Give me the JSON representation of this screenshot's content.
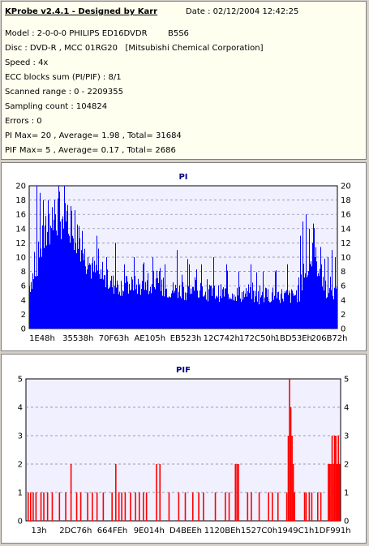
{
  "header": {
    "title": "KProbe v2.4.1 - Designed by Karr",
    "date": "Date : 02/12/2004 12:42:25",
    "lines": [
      "Model : 2-0-0-0 PHILIPS ED16DVDR        B5S6",
      "Disc : DVD-R , MCC 01RG20   [Mitsubishi Chemical Corporation]",
      "Speed : 4x",
      "ECC blocks sum (PI/PIF) : 8/1",
      "Scanned range : 0 - 2209355",
      "Sampling count : 104824",
      "Errors : 0",
      "PI Max= 20 , Average= 1.98 , Total= 31684",
      "PIF Max= 5 , Average= 0.17 , Total= 2686"
    ]
  },
  "colors": {
    "pi": "#0000ff",
    "pif": "#ff0000",
    "plot_bg": "#f0f0ff",
    "title": "#000080"
  },
  "chart_data": [
    {
      "type": "bar",
      "title": "PI",
      "ylim": [
        0,
        20
      ],
      "yticks": [
        0,
        2,
        4,
        6,
        8,
        10,
        12,
        14,
        16,
        18,
        20
      ],
      "xtick_labels": [
        "1E48h",
        "35538h",
        "70F63h",
        "AE105h",
        "EB523h",
        "12C742h",
        "172C50h",
        "1BD53Eh",
        "206B72h"
      ],
      "grid": true,
      "profile": [
        [
          0,
          6
        ],
        [
          3,
          10
        ],
        [
          6,
          14
        ],
        [
          9,
          16
        ],
        [
          12,
          17
        ],
        [
          15,
          14
        ],
        [
          18,
          10
        ],
        [
          21,
          8
        ],
        [
          24,
          7
        ],
        [
          28,
          6
        ],
        [
          35,
          6
        ],
        [
          45,
          5.5
        ],
        [
          55,
          5
        ],
        [
          65,
          5
        ],
        [
          75,
          4.5
        ],
        [
          80,
          4.8
        ],
        [
          85,
          4.5
        ],
        [
          88,
          5
        ],
        [
          90,
          8
        ],
        [
          92,
          10
        ],
        [
          94,
          9
        ],
        [
          96,
          6
        ],
        [
          98,
          4.5
        ],
        [
          100,
          5
        ]
      ],
      "spikes": [
        [
          2.5,
          20
        ],
        [
          3.5,
          19
        ],
        [
          4.5,
          18
        ],
        [
          6,
          18
        ],
        [
          7.5,
          17
        ],
        [
          8.5,
          16
        ],
        [
          10,
          15
        ],
        [
          11,
          14
        ],
        [
          12,
          15
        ],
        [
          13,
          13
        ],
        [
          15,
          12
        ],
        [
          17,
          11
        ],
        [
          19,
          10
        ],
        [
          22,
          13
        ],
        [
          25,
          10
        ],
        [
          28,
          12
        ],
        [
          31,
          9
        ],
        [
          34,
          10
        ],
        [
          37,
          9
        ],
        [
          40,
          10
        ],
        [
          44,
          9
        ],
        [
          48,
          11
        ],
        [
          52,
          9
        ],
        [
          56,
          9
        ],
        [
          60,
          10
        ],
        [
          64,
          9
        ],
        [
          68,
          8
        ],
        [
          72,
          9
        ],
        [
          76,
          8
        ],
        [
          80,
          8
        ],
        [
          84,
          9
        ],
        [
          88,
          13
        ],
        [
          89,
          15
        ],
        [
          90,
          16
        ],
        [
          91,
          14
        ],
        [
          92,
          12
        ],
        [
          93,
          10
        ],
        [
          95,
          9
        ],
        [
          97,
          10
        ],
        [
          98.5,
          11
        ],
        [
          99.5,
          10
        ]
      ],
      "series": [
        {
          "values_note": ""
        }
      ]
    },
    {
      "type": "bar",
      "title": "PIF",
      "ylim": [
        0,
        5
      ],
      "yticks": [
        0,
        1,
        2,
        3,
        4,
        5
      ],
      "xtick_labels": [
        "13h",
        "2DC76h",
        "664FEh",
        "9E014h",
        "D4BEEh",
        "1120BEh",
        "1527C0h",
        "1949C1h",
        "1DF991h"
      ],
      "grid": true,
      "bars": [
        [
          0.5,
          1
        ],
        [
          1.3,
          1
        ],
        [
          2.1,
          1
        ],
        [
          3,
          1
        ],
        [
          4.6,
          1
        ],
        [
          5.5,
          1
        ],
        [
          6.7,
          1
        ],
        [
          8.2,
          1
        ],
        [
          10.5,
          1
        ],
        [
          12.5,
          1
        ],
        [
          14.2,
          2
        ],
        [
          16,
          1
        ],
        [
          17.3,
          1
        ],
        [
          19.5,
          1
        ],
        [
          21,
          1
        ],
        [
          22.5,
          1
        ],
        [
          24.5,
          1
        ],
        [
          27.3,
          1
        ],
        [
          28.5,
          2
        ],
        [
          29.5,
          1
        ],
        [
          30.4,
          1
        ],
        [
          31.5,
          1
        ],
        [
          33.2,
          1
        ],
        [
          34.8,
          1
        ],
        [
          36,
          1
        ],
        [
          37.3,
          1
        ],
        [
          38.3,
          1
        ],
        [
          41.5,
          2
        ],
        [
          42.6,
          2
        ],
        [
          45.5,
          1
        ],
        [
          48.6,
          1
        ],
        [
          50.7,
          1
        ],
        [
          53.1,
          1
        ],
        [
          55,
          1
        ],
        [
          56.5,
          1
        ],
        [
          60.3,
          1
        ],
        [
          63.5,
          1
        ],
        [
          64.7,
          1
        ],
        [
          66.7,
          2
        ],
        [
          67.2,
          2
        ],
        [
          67.7,
          2
        ],
        [
          70.6,
          1
        ],
        [
          71.8,
          1
        ],
        [
          74.3,
          1
        ],
        [
          77.3,
          1
        ],
        [
          78.5,
          1
        ],
        [
          80.3,
          1
        ],
        [
          83.1,
          1
        ],
        [
          83.6,
          3
        ],
        [
          84,
          5
        ],
        [
          84.4,
          4
        ],
        [
          84.8,
          3
        ],
        [
          85.2,
          2
        ],
        [
          85.6,
          1
        ],
        [
          88.8,
          1
        ],
        [
          89.3,
          1
        ],
        [
          90.3,
          1
        ],
        [
          91.1,
          1
        ],
        [
          93,
          1
        ],
        [
          94,
          1
        ],
        [
          96.4,
          2
        ],
        [
          96.8,
          2
        ],
        [
          97.2,
          2
        ],
        [
          97.6,
          3
        ],
        [
          98,
          2
        ],
        [
          98.4,
          3
        ],
        [
          98.8,
          3
        ],
        [
          99.2,
          2
        ],
        [
          99.6,
          3
        ],
        [
          100,
          2
        ]
      ]
    }
  ]
}
